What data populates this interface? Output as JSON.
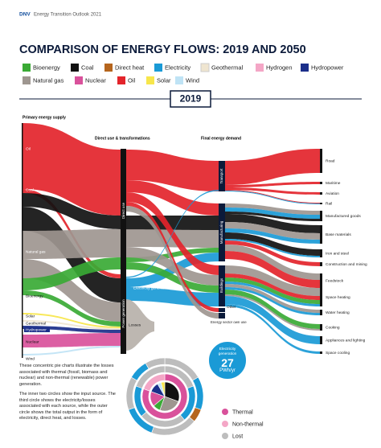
{
  "header": {
    "brand": "DNV",
    "publication": "Energy Transition Outlook 2021"
  },
  "title": "COMPARISON OF ENERGY FLOWS: 2019 AND 2050",
  "legend": [
    {
      "label": "Bioenergy",
      "color": "#3aaa35"
    },
    {
      "label": "Coal",
      "color": "#111111"
    },
    {
      "label": "Direct heat",
      "color": "#b5651d"
    },
    {
      "label": "Electricity",
      "color": "#1a9ad6"
    },
    {
      "label": "Geothermal",
      "color": "#efe5d0"
    },
    {
      "label": "Hydrogen",
      "color": "#f4a6c6"
    },
    {
      "label": "Hydropower",
      "color": "#1b2f8a"
    },
    {
      "label": "Natural gas",
      "color": "#9e9690"
    },
    {
      "label": "Nuclear",
      "color": "#d9519b"
    },
    {
      "label": "Oil",
      "color": "#e3242b"
    },
    {
      "label": "Solar",
      "color": "#f7e64b"
    },
    {
      "label": "Wind",
      "color": "#bfe3f5"
    }
  ],
  "year": "2019",
  "columns": {
    "primary": "Primary energy supply",
    "transform": "Direct use & transformations",
    "final": "Final energy demand"
  },
  "sources": [
    "Oil",
    "Coal",
    "Natural gas",
    "Bioenergy",
    "Solar",
    "Geothermal",
    "Hydropower",
    "Nuclear",
    "Wind"
  ],
  "transformations": {
    "direct": "Direct use",
    "power": "Power generation",
    "electricity": "Electricity generated",
    "losses": "Losses"
  },
  "sectors": [
    "Transport",
    "Manufacturing",
    "Buildings",
    "Other",
    "Energy sector own use"
  ],
  "end_uses": [
    "Road",
    "Maritime",
    "Aviation",
    "Rail",
    "Manufactured goods",
    "Base materials",
    "Iron and steel",
    "Construction and mining",
    "Feedstock",
    "Space heating",
    "Water heating",
    "Cooking",
    "Appliances and lighting",
    "Space cooling"
  ],
  "notes": [
    "These concentric pie charts illustrate the losses associated with thermal (fossil, biomass and nuclear) and non-thermal (renewable) power generation.",
    "The inner two circles show the input source. The third circle shows the electricity/losses associated with each source, while the outer circle shows the total output in the form of electricity, direct heat, and losses."
  ],
  "electricity_badge": {
    "label": "Electricity generation",
    "value": 27,
    "unit": "PWh/yr"
  },
  "pie_legend": [
    {
      "label": "Thermal",
      "color": "#d9519b"
    },
    {
      "label": "Non-thermal",
      "color": "#f4a6c6"
    },
    {
      "label": "Lost",
      "color": "#bdbdbd"
    }
  ]
}
